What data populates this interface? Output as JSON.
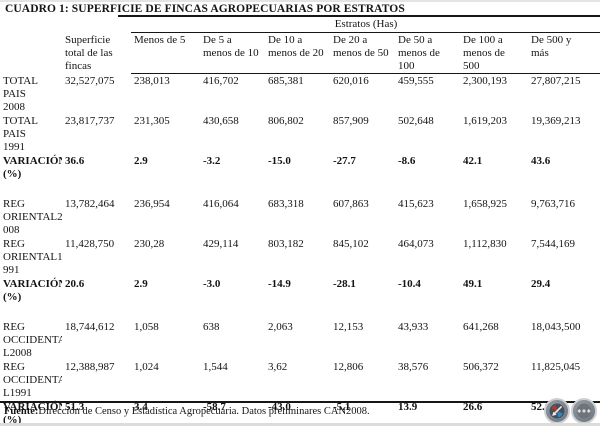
{
  "title": "CUADRO 1: SUPERFICIE DE FINCAS AGROPECUARIAS POR ESTRATOS",
  "table": {
    "group_header": "Estratos (Has)",
    "columns": [
      "Superficie\ntotal de las\nfincas",
      "Menos de 5",
      "De 5 a\nmenos de 10",
      "De 10 a\nmenos de 20",
      "De 20 a\nmenos de 50",
      "De 50 a\nmenos de\n100",
      "De 100 a\nmenos de\n500",
      "De 500 y\nmás"
    ],
    "sections": [
      {
        "rows": [
          {
            "label": "TOTAL PAIS\n2008",
            "bold": false,
            "values": [
              "32,527,075",
              "238,013",
              "416,702",
              "685,381",
              "620,016",
              "459,555",
              "2,300,193",
              "27,807,215"
            ]
          },
          {
            "label": "TOTAL PAIS\n1991",
            "bold": false,
            "values": [
              "23,817,737",
              "231,305",
              "430,658",
              "806,802",
              "857,909",
              "502,648",
              "1,619,203",
              "19,369,213"
            ]
          },
          {
            "label": "VARIACIÓN\n(%)",
            "bold": true,
            "values": [
              "36.6",
              "2.9",
              "-3.2",
              "-15.0",
              "-27.7",
              "-8.6",
              "42.1",
              "43.6"
            ]
          }
        ]
      },
      {
        "rows": [
          {
            "label": "REG\nORIENTAL2\n008",
            "bold": false,
            "values": [
              "13,782,464",
              "236,954",
              "416,064",
              "683,318",
              "607,863",
              "415,623",
              "1,658,925",
              "9,763,716"
            ]
          },
          {
            "label": "REG\nORIENTAL1\n991",
            "bold": false,
            "values": [
              "11,428,750",
              "230,28",
              "429,114",
              "803,182",
              "845,102",
              "464,073",
              "1,112,830",
              "7,544,169"
            ]
          },
          {
            "label": "VARIACIÓN\n(%)",
            "bold": true,
            "values": [
              "20.6",
              "2.9",
              "-3.0",
              "-14.9",
              "-28.1",
              "-10.4",
              "49.1",
              "29.4"
            ]
          }
        ]
      },
      {
        "rows": [
          {
            "label": "REG\nOCCIDENTA\nL2008",
            "bold": false,
            "values": [
              "18,744,612",
              "1,058",
              "638",
              "2,063",
              "12,153",
              "43,933",
              "641,268",
              "18,043,500"
            ]
          },
          {
            "label": "REG\nOCCIDENTA\nL1991",
            "bold": false,
            "values": [
              "12,388,987",
              "1,024",
              "1,544",
              "3,62",
              "12,806",
              "38,576",
              "506,372",
              "11,825,045"
            ]
          },
          {
            "label": "VARIACIÓN\n(%)",
            "bold": true,
            "values": [
              "51.3",
              "3.4",
              "-58.7",
              "-43.0",
              "-5.1",
              "13.9",
              "26.6",
              "52.6"
            ]
          }
        ]
      }
    ]
  },
  "footer": {
    "source_label": "Fuente:",
    "source_text": "Dirección de Censo y Estadística Agropecuaria. Datos preliminares CAN2008."
  },
  "overlay": {
    "buttons": [
      {
        "icon": "compass-pointer-icon"
      },
      {
        "icon": "more-options-icon"
      }
    ]
  },
  "colors": {
    "rule": "#161616",
    "button_gray": "#777e86",
    "needle_red": "#b03a2e",
    "needle_blue": "#2e86c1"
  }
}
